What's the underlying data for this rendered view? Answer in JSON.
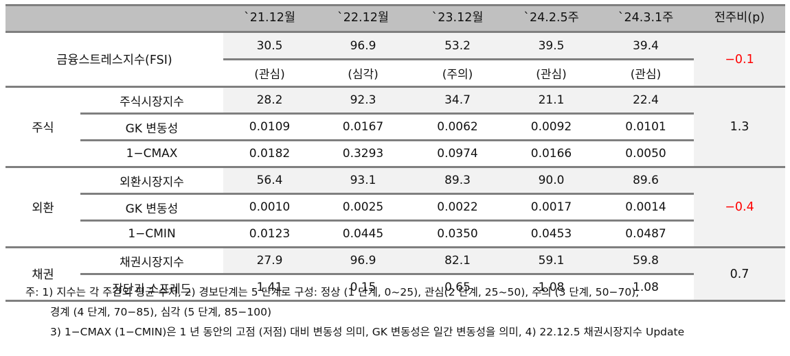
{
  "header": {
    "columns": [
      "`21.12월",
      "`22.12월",
      "`23.12월",
      "`24.2.5주",
      "`24.3.1주",
      "전주비(p)"
    ]
  },
  "fsi": {
    "label": "금융스트레스지수(FSI)",
    "values": [
      "30.5",
      "96.9",
      "53.2",
      "39.5",
      "39.4"
    ],
    "levels": [
      "(관심)",
      "(심각)",
      "(주의)",
      "(관심)",
      "(관심)"
    ],
    "change": "−0.1"
  },
  "stock": {
    "label": "주식",
    "rows": [
      {
        "label": "주식시장지수",
        "values": [
          "28.2",
          "92.3",
          "34.7",
          "21.1",
          "22.4"
        ]
      },
      {
        "label": "GK 변동성",
        "values": [
          "0.0109",
          "0.0167",
          "0.0062",
          "0.0092",
          "0.0101"
        ]
      },
      {
        "label": "1−CMAX",
        "values": [
          "0.0182",
          "0.3293",
          "0.0974",
          "0.0166",
          "0.0050"
        ]
      }
    ],
    "change": "1.3"
  },
  "fx": {
    "label": "외환",
    "rows": [
      {
        "label": "외환시장지수",
        "values": [
          "56.4",
          "93.1",
          "89.3",
          "90.0",
          "89.6"
        ]
      },
      {
        "label": "GK 변동성",
        "values": [
          "0.0010",
          "0.0025",
          "0.0022",
          "0.0017",
          "0.0014"
        ]
      },
      {
        "label": "1−CMIN",
        "values": [
          "0.0123",
          "0.0445",
          "0.0350",
          "0.0453",
          "0.0487"
        ]
      }
    ],
    "change": "−0.4"
  },
  "bond": {
    "label": "채권",
    "rows": [
      {
        "label": "채권시장지수",
        "values": [
          "27.9",
          "96.9",
          "82.1",
          "59.1",
          "59.8"
        ]
      },
      {
        "label": "장단기 스프레드",
        "values": [
          "1.41",
          "0.15",
          "0.65",
          "1.08",
          "1.08"
        ]
      }
    ],
    "change": "0.7"
  },
  "notes": {
    "line1": "주: 1) 지수는 각 주간의 평균 수치, 2) 경보단계는 5 단계로 구성: 정상 (1 단계, 0~25), 관심(2 단계, 25~50), 주의 (3 단계, 50−70),",
    "line2": "경계 (4 단계, 70−85), 심각 (5 단계, 85−100)",
    "line3": "3) 1−CMAX (1−CMIN)은 1 년 동안의 고점 (저점) 대비 변동성 의미, GK 변동성은 일간 변동성을 의미, 4) 22.12.5 채권시장지수 Update"
  },
  "colors": {
    "header_bg": "#c0c0c0",
    "shade_bg": "#f2f2f2",
    "rule": "#7f7f7f",
    "negative": "#ff0000"
  }
}
